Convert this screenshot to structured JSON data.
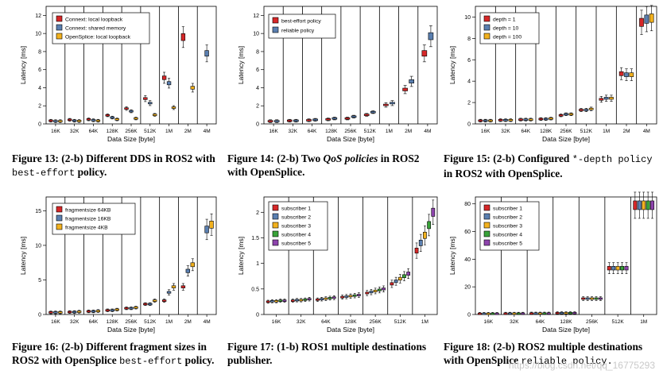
{
  "figures": [
    {
      "caption": {
        "label": "Figure 13:",
        "bold": "(2-b) Different DDS in ROS2 with",
        "mono": "best-effort",
        "tail": "policy."
      },
      "chart_data": {
        "type": "boxplot",
        "ylabel": "Latency [ms]",
        "xlabel": "Data Size [byte]",
        "ylim": [
          0,
          13
        ],
        "yticks": [
          0,
          2,
          4,
          6,
          8,
          10,
          12
        ],
        "categories": [
          "16K",
          "32K",
          "64K",
          "128K",
          "256K",
          "512K",
          "1M",
          "2M",
          "4M"
        ],
        "legend": [
          {
            "name": "Connext: local loopback",
            "color": "#d62728"
          },
          {
            "name": "Connext: shared memory",
            "color": "#5a7fb0"
          },
          {
            "name": "OpenSplice: local loopback",
            "color": "#f2b11e"
          }
        ],
        "series": [
          {
            "name": "Connext: local loopback",
            "values": [
              0.35,
              0.45,
              0.5,
              0.95,
              1.7,
              2.8,
              5.1,
              9.6,
              null
            ]
          },
          {
            "name": "Connext: shared memory",
            "values": [
              0.3,
              0.35,
              0.4,
              0.7,
              1.4,
              2.3,
              4.5,
              null,
              7.8
            ]
          },
          {
            "name": "OpenSplice: local loopback",
            "values": [
              0.3,
              0.32,
              0.35,
              0.5,
              0.6,
              1.0,
              1.8,
              4.0,
              null
            ]
          }
        ]
      }
    },
    {
      "caption": {
        "label": "Figure 14:",
        "bold": "(2-b) Two",
        "italic": "QoS policies",
        "tail": "in ROS2 with OpenSplice."
      },
      "chart_data": {
        "type": "boxplot",
        "ylabel": "Latency [ms]",
        "xlabel": "Data Size [byte]",
        "ylim": [
          0,
          13
        ],
        "yticks": [
          0,
          2,
          4,
          6,
          8,
          10,
          12
        ],
        "categories": [
          "16K",
          "32K",
          "64K",
          "128K",
          "256K",
          "512K",
          "1M",
          "2M",
          "4M"
        ],
        "legend": [
          {
            "name": "best-effort policy",
            "color": "#d62728"
          },
          {
            "name": "reliable policy",
            "color": "#5a7fb0"
          }
        ],
        "series": [
          {
            "name": "best-effort policy",
            "values": [
              0.3,
              0.35,
              0.4,
              0.5,
              0.6,
              1.0,
              2.1,
              3.8,
              7.8
            ]
          },
          {
            "name": "reliable policy",
            "values": [
              0.3,
              0.35,
              0.45,
              0.6,
              0.8,
              1.3,
              2.3,
              4.7,
              9.7
            ]
          }
        ]
      }
    },
    {
      "caption": {
        "label": "Figure 15:",
        "bold": "(2-b) Configured",
        "mono": "*-depth policy",
        "tail": "in ROS2 with OpenSplice."
      },
      "chart_data": {
        "type": "boxplot",
        "ylabel": "Latency [ms]",
        "xlabel": "Data Size [byte]",
        "ylim": [
          0,
          11
        ],
        "yticks": [
          0,
          2,
          4,
          6,
          8,
          10
        ],
        "categories": [
          "16K",
          "32K",
          "64K",
          "128K",
          "256K",
          "512K",
          "1M",
          "2M",
          "4M"
        ],
        "legend": [
          {
            "name": "depth =   1",
            "color": "#d62728"
          },
          {
            "name": "depth =  10",
            "color": "#5a7fb0"
          },
          {
            "name": "depth = 100",
            "color": "#f2b11e"
          }
        ],
        "series": [
          {
            "name": "depth = 1",
            "values": [
              0.3,
              0.35,
              0.4,
              0.45,
              0.8,
              1.3,
              2.3,
              4.7,
              9.5
            ]
          },
          {
            "name": "depth = 10",
            "values": [
              0.3,
              0.35,
              0.4,
              0.45,
              0.9,
              1.3,
              2.4,
              4.6,
              9.8
            ]
          },
          {
            "name": "depth = 100",
            "values": [
              0.3,
              0.35,
              0.4,
              0.5,
              0.9,
              1.4,
              2.4,
              4.6,
              9.9
            ]
          }
        ]
      }
    },
    {
      "caption": {
        "label": "Figure 16:",
        "bold": "(2-b) Different fragment sizes in ROS2 with OpenSplice",
        "mono": "best-effort",
        "tail": "policy."
      },
      "chart_data": {
        "type": "boxplot",
        "ylabel": "Latency [ms]",
        "xlabel": "Data Size [byte]",
        "ylim": [
          0,
          17
        ],
        "yticks": [
          0,
          5,
          10,
          15
        ],
        "categories": [
          "16K",
          "32K",
          "64K",
          "128K",
          "256K",
          "512K",
          "1M",
          "2M",
          "4M"
        ],
        "legend": [
          {
            "name": "fragmentsize 64KB",
            "color": "#d62728"
          },
          {
            "name": "fragmentsize 16KB",
            "color": "#5a7fb0"
          },
          {
            "name": "fragmentsize 4KB",
            "color": "#f2b11e"
          }
        ],
        "series": [
          {
            "name": "fragmentsize 64KB",
            "values": [
              0.3,
              0.35,
              0.45,
              0.6,
              0.9,
              1.5,
              2.0,
              4.0,
              null
            ]
          },
          {
            "name": "fragmentsize 16KB",
            "values": [
              0.3,
              0.35,
              0.45,
              0.6,
              0.9,
              1.5,
              3.2,
              6.3,
              12.3
            ]
          },
          {
            "name": "fragmentsize 4KB",
            "values": [
              0.3,
              0.4,
              0.5,
              0.7,
              1.0,
              2.0,
              4.0,
              7.2,
              13.0
            ]
          }
        ]
      }
    },
    {
      "caption": {
        "label": "Figure 17:",
        "bold": "(1-b) ROS1 multiple destinations publisher."
      },
      "chart_data": {
        "type": "boxplot",
        "ylabel": "Latency [ms]",
        "xlabel": "Data Size [byte]",
        "ylim": [
          0,
          2.3
        ],
        "yticks": [
          0.0,
          0.5,
          1.0,
          1.5,
          2.0
        ],
        "categories": [
          "16K",
          "32K",
          "64K",
          "128K",
          "256K",
          "512K",
          "1M"
        ],
        "legend": [
          {
            "name": "subscriber 1",
            "color": "#d62728"
          },
          {
            "name": "subscriber 2",
            "color": "#5a7fb0"
          },
          {
            "name": "subscriber 3",
            "color": "#f2b11e"
          },
          {
            "name": "subscriber 4",
            "color": "#39a339"
          },
          {
            "name": "subscriber 5",
            "color": "#8e44ad"
          }
        ],
        "series": [
          {
            "name": "subscriber 1",
            "values": [
              0.25,
              0.27,
              0.29,
              0.34,
              0.42,
              0.6,
              1.25
            ]
          },
          {
            "name": "subscriber 2",
            "values": [
              0.26,
              0.28,
              0.3,
              0.35,
              0.44,
              0.65,
              1.4
            ]
          },
          {
            "name": "subscriber 3",
            "values": [
              0.26,
              0.28,
              0.31,
              0.36,
              0.46,
              0.7,
              1.55
            ]
          },
          {
            "name": "subscriber 4",
            "values": [
              0.27,
              0.29,
              0.32,
              0.37,
              0.48,
              0.75,
              1.75
            ]
          },
          {
            "name": "subscriber 5",
            "values": [
              0.27,
              0.3,
              0.33,
              0.38,
              0.5,
              0.8,
              2.0
            ]
          }
        ]
      }
    },
    {
      "caption": {
        "label": "Figure 18:",
        "bold": "(2-b) ROS2 multiple destinations with OpenSplice",
        "mono": "reliable policy."
      },
      "chart_data": {
        "type": "boxplot",
        "ylabel": "Latency [ms]",
        "xlabel": "Data Size [byte]",
        "ylim": [
          0,
          85
        ],
        "yticks": [
          0,
          20,
          40,
          60,
          80
        ],
        "categories": [
          "16K",
          "32K",
          "64K",
          "128K",
          "256K",
          "512K",
          "1M"
        ],
        "legend": [
          {
            "name": "subscriber 1",
            "color": "#d62728"
          },
          {
            "name": "subscriber 2",
            "color": "#5a7fb0"
          },
          {
            "name": "subscriber 3",
            "color": "#f2b11e"
          },
          {
            "name": "subscriber 4",
            "color": "#39a339"
          },
          {
            "name": "subscriber 5",
            "color": "#8e44ad"
          }
        ],
        "series": [
          {
            "name": "subscriber 1",
            "values": [
              0.5,
              0.6,
              0.7,
              1.0,
              11.5,
              33.5,
              79
            ]
          },
          {
            "name": "subscriber 2",
            "values": [
              0.5,
              0.6,
              0.7,
              1.0,
              11.5,
              33.5,
              79
            ]
          },
          {
            "name": "subscriber 3",
            "values": [
              0.5,
              0.6,
              0.7,
              1.0,
              11.5,
              33.5,
              79
            ]
          },
          {
            "name": "subscriber 4",
            "values": [
              0.5,
              0.6,
              0.7,
              1.0,
              11.5,
              33.5,
              79
            ]
          },
          {
            "name": "subscriber 5",
            "values": [
              0.5,
              0.6,
              0.7,
              1.0,
              11.5,
              33.5,
              79
            ]
          }
        ]
      }
    }
  ],
  "watermark": "https://blog.csdn.net/qq_16775293"
}
